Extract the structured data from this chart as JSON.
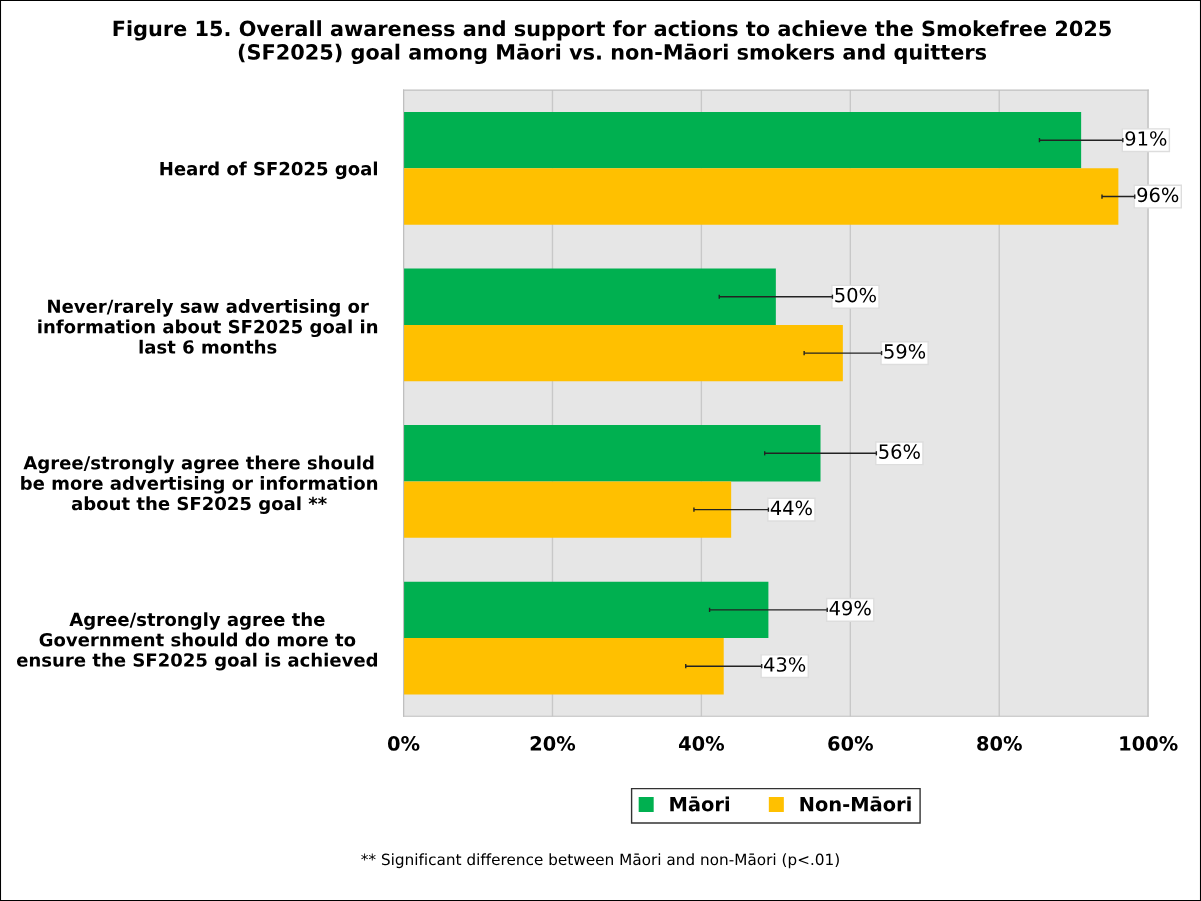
{
  "chart_data": {
    "type": "bar",
    "orientation": "horizontal",
    "title": "Figure 15. Overall awareness and support for actions to achieve the Smokefree 2025\n(SF2025) goal among Māori vs. non-Māori smokers and quitters",
    "categories": [
      "Heard of SF2025 goal",
      "Never/rarely saw advertising or\ninformation about SF2025 goal in\nlast 6 months",
      "Agree/strongly agree there should\nbe more advertising or information\nabout the SF2025 goal **",
      "Agree/strongly agree the\nGovernment should do more to\nensure the SF2025 goal is achieved"
    ],
    "series": [
      {
        "name": "Māori",
        "color": "#00b050",
        "values": [
          91,
          50,
          56,
          49
        ],
        "errors": [
          5.6,
          7.6,
          7.5,
          7.9
        ],
        "value_labels": [
          "91%",
          "50%",
          "56%",
          "49%"
        ]
      },
      {
        "name": "Non-Māori",
        "color": "#ffc000",
        "values": [
          96,
          59,
          44,
          43
        ],
        "errors": [
          2.2,
          5.2,
          5.0,
          5.1
        ],
        "value_labels": [
          "96%",
          "59%",
          "44%",
          "43%"
        ]
      }
    ],
    "xlim": [
      0,
      100
    ],
    "xticks": [
      {
        "value": 0,
        "label": "0%"
      },
      {
        "value": 20,
        "label": "20%"
      },
      {
        "value": 40,
        "label": "40%"
      },
      {
        "value": 60,
        "label": "60%"
      },
      {
        "value": 80,
        "label": "80%"
      },
      {
        "value": 100,
        "label": "100%"
      }
    ],
    "grid": "x",
    "legend": "bottom",
    "annotations": [
      "** Significant difference between Māori and non-Māori (p<.01)"
    ]
  }
}
